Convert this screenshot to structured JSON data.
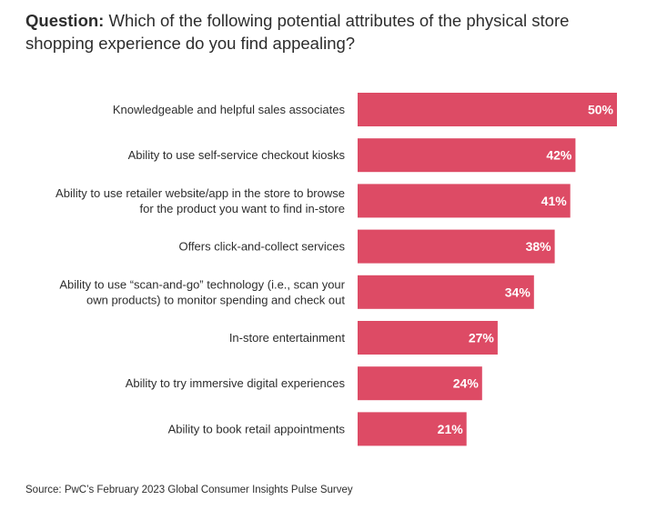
{
  "question": {
    "label": "Question:",
    "text": "Which of the following potential attributes of the physical store shopping experience do you find appealing?"
  },
  "source": "Source: PwC’s February 2023 Global Consumer Insights Pulse Survey",
  "colors": {
    "bar": "#dd4b65",
    "bar_label": "#ffffff",
    "category_label": "#2d2d2d"
  },
  "chart_data": {
    "type": "bar",
    "orientation": "horizontal",
    "categories": [
      [
        "Knowledgeable and helpful sales associates"
      ],
      [
        "Ability to use self-service checkout kiosks"
      ],
      [
        "Ability to use retailer website/app in the store to browse",
        "for the product you want to find in-store"
      ],
      [
        "Offers click-and-collect services"
      ],
      [
        "Ability to use “scan-and-go” technology (i.e., scan your",
        "own products) to monitor spending and check out"
      ],
      [
        "In-store entertainment"
      ],
      [
        "Ability to try immersive digital experiences"
      ],
      [
        "Ability to book retail appointments"
      ]
    ],
    "values": [
      50,
      42,
      41,
      38,
      34,
      27,
      24,
      21
    ],
    "data_labels": [
      "50%",
      "42%",
      "41%",
      "38%",
      "34%",
      "27%",
      "24%",
      "21%"
    ],
    "unit": "%",
    "xlim": [
      0,
      50
    ],
    "grid": false,
    "legend": "none"
  }
}
